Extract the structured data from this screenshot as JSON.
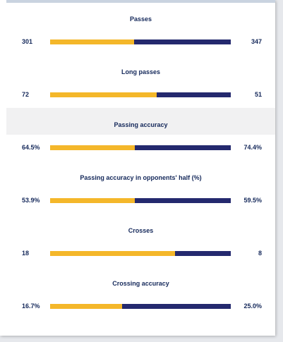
{
  "stats": [
    {
      "label": "Passes",
      "left": "301",
      "right": "347",
      "left_share": 0.465,
      "shaded": false
    },
    {
      "label": "Long passes",
      "left": "72",
      "right": "51",
      "left_share": 0.59,
      "shaded": false
    },
    {
      "label": "Passing accuracy",
      "left": "64.5%",
      "right": "74.4%",
      "left_share": 0.47,
      "shaded": true
    },
    {
      "label": "Passing accuracy in opponents' half (%)",
      "left": "53.9%",
      "right": "59.5%",
      "left_share": 0.47,
      "shaded": false
    },
    {
      "label": "Crosses",
      "left": "18",
      "right": "8",
      "left_share": 0.69,
      "shaded": false
    },
    {
      "label": "Crossing accuracy",
      "left": "16.7%",
      "right": "25.0%",
      "left_share": 0.4,
      "shaded": false
    }
  ],
  "colors": {
    "home": "#f4b72a",
    "away": "#24296e",
    "text": "#14285a"
  }
}
